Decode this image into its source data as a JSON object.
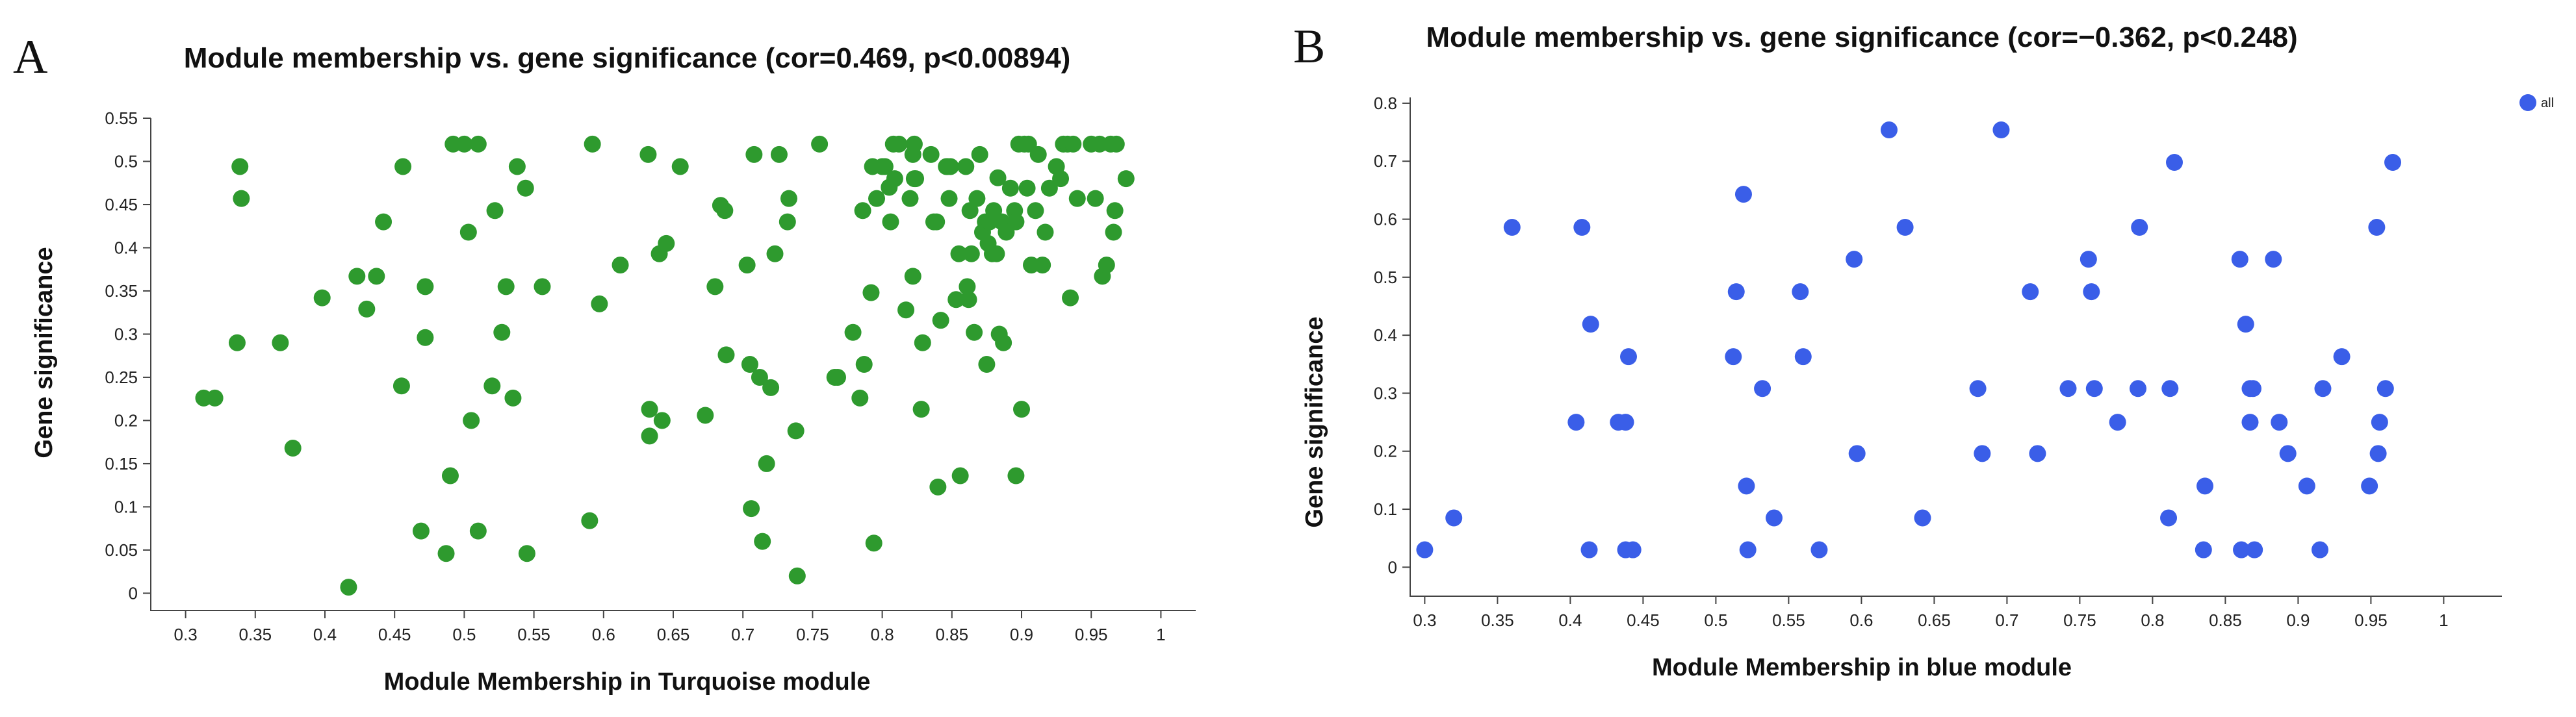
{
  "panels": {
    "a_label": "A",
    "b_label": "B"
  },
  "chart_data": [
    {
      "type": "scatter",
      "panel": "A",
      "title": "Module membership vs. gene significance (cor=0.469, p<0.00894)",
      "xlabel": "Module Membership in Turquoise module",
      "ylabel": "Gene significance",
      "xlim": [
        0.275,
        1.025
      ],
      "ylim": [
        -0.02,
        0.55
      ],
      "xticks": [
        0.3,
        0.35,
        0.4,
        0.45,
        0.5,
        0.55,
        0.6,
        0.65,
        0.7,
        0.75,
        0.8,
        0.85,
        0.9,
        0.95,
        1
      ],
      "xtick_labels": [
        "0.3",
        "0.35",
        "0.4",
        "0.45",
        "0.5",
        "0.55",
        "0.6",
        "0.65",
        "0.7",
        "0.75",
        "0.8",
        "0.85",
        "0.9",
        "0.95",
        "1"
      ],
      "yticks": [
        0,
        0.05,
        0.1,
        0.15,
        0.2,
        0.25,
        0.3,
        0.35,
        0.4,
        0.45,
        0.5,
        0.55
      ],
      "ytick_labels": [
        "0",
        "0.05",
        "0.1",
        "0.15",
        "0.2",
        "0.25",
        "0.3",
        "0.35",
        "0.4",
        "0.45",
        "0.5",
        "0.55"
      ],
      "point_color": "#2e9a2e",
      "points": [
        [
          0.313,
          0.226
        ],
        [
          0.321,
          0.226
        ],
        [
          0.337,
          0.29
        ],
        [
          0.339,
          0.494
        ],
        [
          0.34,
          0.457
        ],
        [
          0.368,
          0.29
        ],
        [
          0.377,
          0.168
        ],
        [
          0.398,
          0.342
        ],
        [
          0.417,
          0.007
        ],
        [
          0.423,
          0.367
        ],
        [
          0.43,
          0.329
        ],
        [
          0.437,
          0.367
        ],
        [
          0.442,
          0.43
        ],
        [
          0.455,
          0.24
        ],
        [
          0.456,
          0.494
        ],
        [
          0.469,
          0.072
        ],
        [
          0.472,
          0.355
        ],
        [
          0.472,
          0.296
        ],
        [
          0.487,
          0.046
        ],
        [
          0.49,
          0.136
        ],
        [
          0.492,
          0.52
        ],
        [
          0.5,
          0.52
        ],
        [
          0.503,
          0.418
        ],
        [
          0.505,
          0.2
        ],
        [
          0.51,
          0.52
        ],
        [
          0.51,
          0.072
        ],
        [
          0.52,
          0.24
        ],
        [
          0.522,
          0.443
        ],
        [
          0.527,
          0.302
        ],
        [
          0.53,
          0.355
        ],
        [
          0.535,
          0.226
        ],
        [
          0.538,
          0.494
        ],
        [
          0.544,
          0.469
        ],
        [
          0.545,
          0.046
        ],
        [
          0.556,
          0.355
        ],
        [
          0.59,
          0.084
        ],
        [
          0.592,
          0.52
        ],
        [
          0.597,
          0.335
        ],
        [
          0.612,
          0.38
        ],
        [
          0.633,
          0.213
        ],
        [
          0.632,
          0.508
        ],
        [
          0.633,
          0.182
        ],
        [
          0.64,
          0.393
        ],
        [
          0.642,
          0.2
        ],
        [
          0.645,
          0.405
        ],
        [
          0.655,
          0.494
        ],
        [
          0.673,
          0.206
        ],
        [
          0.68,
          0.355
        ],
        [
          0.684,
          0.449
        ],
        [
          0.687,
          0.443
        ],
        [
          0.688,
          0.276
        ],
        [
          0.703,
          0.38
        ],
        [
          0.705,
          0.265
        ],
        [
          0.706,
          0.098
        ],
        [
          0.708,
          0.508
        ],
        [
          0.712,
          0.25
        ],
        [
          0.714,
          0.06
        ],
        [
          0.717,
          0.15
        ],
        [
          0.72,
          0.238
        ],
        [
          0.723,
          0.393
        ],
        [
          0.726,
          0.508
        ],
        [
          0.732,
          0.43
        ],
        [
          0.733,
          0.457
        ],
        [
          0.738,
          0.188
        ],
        [
          0.739,
          0.02
        ],
        [
          0.755,
          0.52
        ],
        [
          0.766,
          0.25
        ],
        [
          0.768,
          0.25
        ],
        [
          0.779,
          0.302
        ],
        [
          0.784,
          0.226
        ],
        [
          0.786,
          0.443
        ],
        [
          0.787,
          0.265
        ],
        [
          0.792,
          0.348
        ],
        [
          0.793,
          0.494
        ],
        [
          0.794,
          0.058
        ],
        [
          0.796,
          0.457
        ],
        [
          0.8,
          0.494
        ],
        [
          0.802,
          0.494
        ],
        [
          0.805,
          0.47
        ],
        [
          0.806,
          0.43
        ],
        [
          0.808,
          0.52
        ],
        [
          0.809,
          0.48
        ],
        [
          0.812,
          0.52
        ],
        [
          0.817,
          0.328
        ],
        [
          0.82,
          0.457
        ],
        [
          0.822,
          0.508
        ],
        [
          0.822,
          0.367
        ],
        [
          0.823,
          0.52
        ],
        [
          0.823,
          0.48
        ],
        [
          0.824,
          0.48
        ],
        [
          0.828,
          0.213
        ],
        [
          0.829,
          0.29
        ],
        [
          0.835,
          0.508
        ],
        [
          0.837,
          0.43
        ],
        [
          0.839,
          0.43
        ],
        [
          0.84,
          0.123
        ],
        [
          0.842,
          0.316
        ],
        [
          0.846,
          0.494
        ],
        [
          0.847,
          0.494
        ],
        [
          0.848,
          0.457
        ],
        [
          0.849,
          0.494
        ],
        [
          0.853,
          0.34
        ],
        [
          0.855,
          0.393
        ],
        [
          0.856,
          0.136
        ],
        [
          0.86,
          0.494
        ],
        [
          0.861,
          0.355
        ],
        [
          0.862,
          0.34
        ],
        [
          0.863,
          0.443
        ],
        [
          0.864,
          0.393
        ],
        [
          0.866,
          0.302
        ],
        [
          0.868,
          0.457
        ],
        [
          0.87,
          0.508
        ],
        [
          0.872,
          0.418
        ],
        [
          0.874,
          0.43
        ],
        [
          0.875,
          0.265
        ],
        [
          0.876,
          0.405
        ],
        [
          0.877,
          0.43
        ],
        [
          0.879,
          0.393
        ],
        [
          0.88,
          0.443
        ],
        [
          0.882,
          0.393
        ],
        [
          0.883,
          0.481
        ],
        [
          0.884,
          0.3
        ],
        [
          0.886,
          0.43
        ],
        [
          0.887,
          0.29
        ],
        [
          0.889,
          0.418
        ],
        [
          0.892,
          0.469
        ],
        [
          0.895,
          0.443
        ],
        [
          0.896,
          0.136
        ],
        [
          0.896,
          0.43
        ],
        [
          0.898,
          0.52
        ],
        [
          0.9,
          0.213
        ],
        [
          0.902,
          0.52
        ],
        [
          0.904,
          0.469
        ],
        [
          0.905,
          0.52
        ],
        [
          0.907,
          0.38
        ],
        [
          0.91,
          0.443
        ],
        [
          0.912,
          0.508
        ],
        [
          0.915,
          0.38
        ],
        [
          0.917,
          0.418
        ],
        [
          0.92,
          0.469
        ],
        [
          0.925,
          0.494
        ],
        [
          0.928,
          0.48
        ],
        [
          0.93,
          0.52
        ],
        [
          0.933,
          0.52
        ],
        [
          0.935,
          0.342
        ],
        [
          0.937,
          0.52
        ],
        [
          0.94,
          0.457
        ],
        [
          0.95,
          0.52
        ],
        [
          0.953,
          0.457
        ],
        [
          0.956,
          0.52
        ],
        [
          0.958,
          0.367
        ],
        [
          0.961,
          0.38
        ],
        [
          0.964,
          0.52
        ],
        [
          0.966,
          0.418
        ],
        [
          0.967,
          0.443
        ],
        [
          0.968,
          0.52
        ],
        [
          0.975,
          0.48
        ]
      ]
    },
    {
      "type": "scatter",
      "panel": "B",
      "title": "Module membership vs. gene significance (cor=−0.362, p<0.248)",
      "xlabel": "Module Membership in blue module",
      "ylabel": "Gene significance",
      "xlim": [
        0.29,
        1.04
      ],
      "ylim": [
        -0.05,
        0.81
      ],
      "xticks": [
        0.3,
        0.35,
        0.4,
        0.45,
        0.5,
        0.55,
        0.6,
        0.65,
        0.7,
        0.75,
        0.8,
        0.85,
        0.9,
        0.95,
        1
      ],
      "xtick_labels": [
        "0.3",
        "0.35",
        "0.4",
        "0.45",
        "0.5",
        "0.55",
        "0.6",
        "0.65",
        "0.7",
        "0.75",
        "0.8",
        "0.85",
        "0.9",
        "0.95",
        "1"
      ],
      "yticks": [
        0,
        0.1,
        0.2,
        0.3,
        0.4,
        0.5,
        0.6,
        0.7,
        0.8
      ],
      "ytick_labels": [
        "0",
        "0.1",
        "0.2",
        "0.3",
        "0.4",
        "0.5",
        "0.6",
        "0.7",
        "0.8"
      ],
      "point_color": "#3a5ee8",
      "legend": [
        "all"
      ],
      "points": [
        [
          0.3,
          0.03
        ],
        [
          0.32,
          0.085
        ],
        [
          0.36,
          0.586
        ],
        [
          0.404,
          0.25
        ],
        [
          0.408,
          0.586
        ],
        [
          0.413,
          0.03
        ],
        [
          0.414,
          0.419
        ],
        [
          0.433,
          0.25
        ],
        [
          0.438,
          0.25
        ],
        [
          0.438,
          0.03
        ],
        [
          0.44,
          0.363
        ],
        [
          0.443,
          0.03
        ],
        [
          0.512,
          0.363
        ],
        [
          0.514,
          0.475
        ],
        [
          0.519,
          0.643
        ],
        [
          0.521,
          0.14
        ],
        [
          0.522,
          0.03
        ],
        [
          0.532,
          0.308
        ],
        [
          0.54,
          0.085
        ],
        [
          0.558,
          0.475
        ],
        [
          0.56,
          0.363
        ],
        [
          0.571,
          0.03
        ],
        [
          0.595,
          0.531
        ],
        [
          0.597,
          0.196
        ],
        [
          0.619,
          0.754
        ],
        [
          0.63,
          0.586
        ],
        [
          0.642,
          0.085
        ],
        [
          0.68,
          0.308
        ],
        [
          0.683,
          0.196
        ],
        [
          0.696,
          0.754
        ],
        [
          0.716,
          0.475
        ],
        [
          0.721,
          0.196
        ],
        [
          0.742,
          0.308
        ],
        [
          0.756,
          0.531
        ],
        [
          0.758,
          0.475
        ],
        [
          0.76,
          0.308
        ],
        [
          0.776,
          0.25
        ],
        [
          0.79,
          0.308
        ],
        [
          0.791,
          0.586
        ],
        [
          0.811,
          0.085
        ],
        [
          0.812,
          0.308
        ],
        [
          0.815,
          0.698
        ],
        [
          0.835,
          0.03
        ],
        [
          0.836,
          0.14
        ],
        [
          0.86,
          0.531
        ],
        [
          0.861,
          0.03
        ],
        [
          0.864,
          0.419
        ],
        [
          0.867,
          0.25
        ],
        [
          0.867,
          0.308
        ],
        [
          0.869,
          0.308
        ],
        [
          0.87,
          0.03
        ],
        [
          0.883,
          0.531
        ],
        [
          0.887,
          0.25
        ],
        [
          0.893,
          0.196
        ],
        [
          0.906,
          0.14
        ],
        [
          0.915,
          0.03
        ],
        [
          0.917,
          0.308
        ],
        [
          0.93,
          0.363
        ],
        [
          0.949,
          0.14
        ],
        [
          0.954,
          0.586
        ],
        [
          0.955,
          0.196
        ],
        [
          0.956,
          0.25
        ],
        [
          0.96,
          0.308
        ],
        [
          0.965,
          0.698
        ]
      ]
    }
  ]
}
